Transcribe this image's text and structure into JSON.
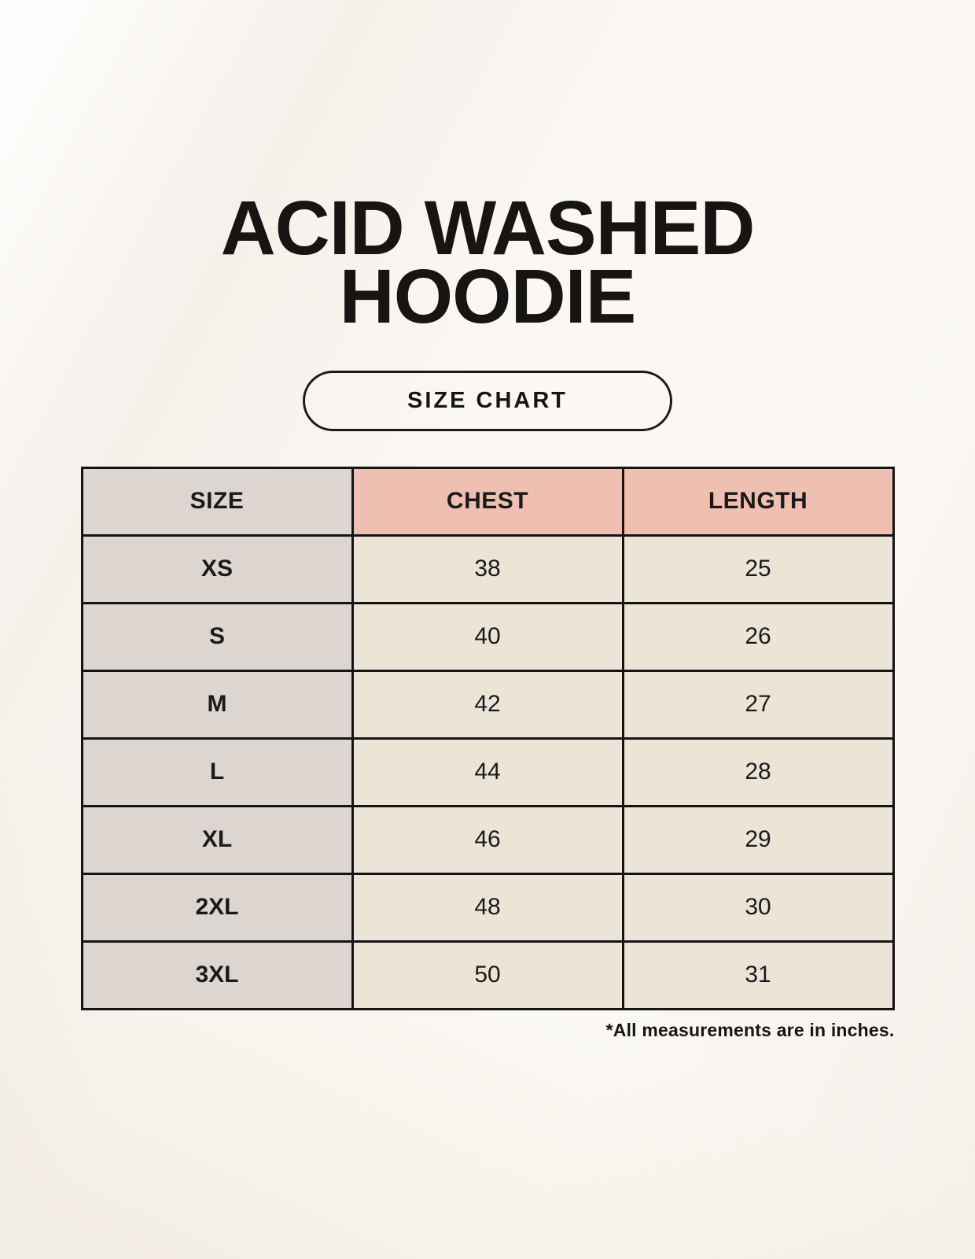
{
  "header": {
    "title_line1": "ACID WASHED",
    "title_line2": "HOODIE",
    "size_chart_button_label": "SIZE CHART"
  },
  "chart_data": {
    "type": "table",
    "title": "ACID WASHED HOODIE",
    "columns": [
      "SIZE",
      "CHEST",
      "LENGTH"
    ],
    "rows": [
      [
        "XS",
        "38",
        "25"
      ],
      [
        "S",
        "40",
        "26"
      ],
      [
        "M",
        "42",
        "27"
      ],
      [
        "L",
        "44",
        "28"
      ],
      [
        "XL",
        "46",
        "29"
      ],
      [
        "2XL",
        "48",
        "30"
      ],
      [
        "3XL",
        "50",
        "31"
      ]
    ],
    "units": "inches",
    "footnote": "*All measurements are in inches."
  },
  "colors": {
    "page_background": "#f8f4ec",
    "text": "#1a1a1a",
    "table_border": "#141414",
    "size_column_bg": "#ddd5d0",
    "header_accent_bg": "#efc0b1",
    "data_cell_bg": "#ebe4d7"
  }
}
